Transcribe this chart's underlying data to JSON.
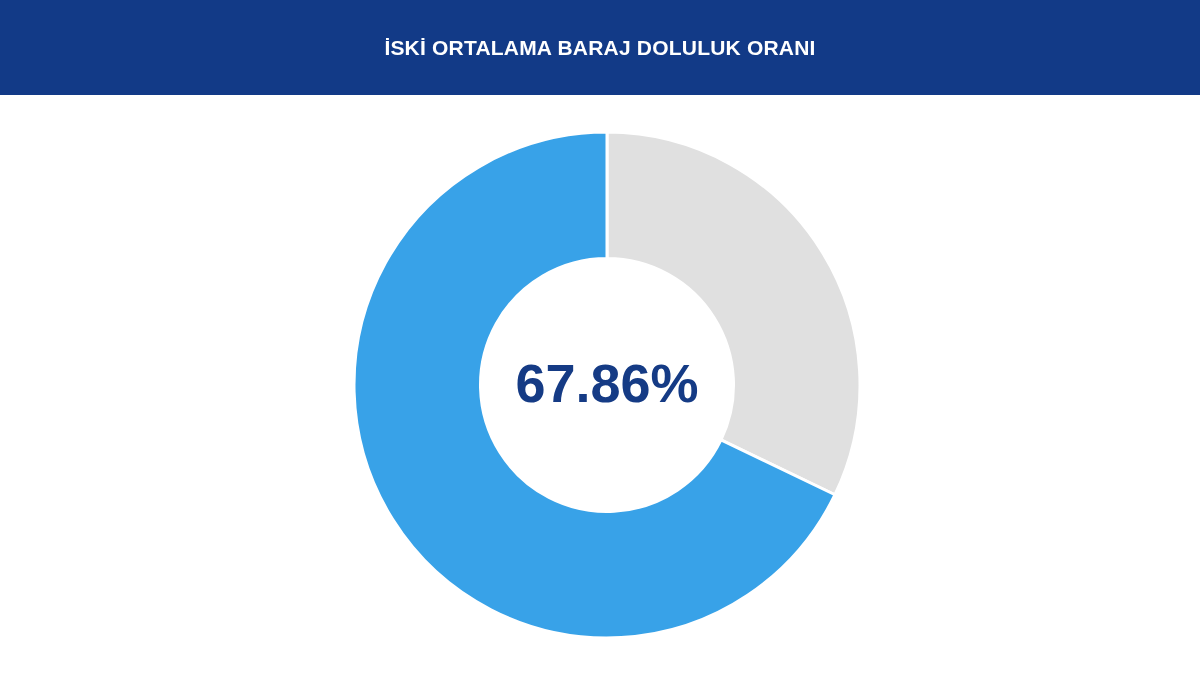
{
  "chart_data": {
    "type": "donut",
    "title": "İSKİ ORTALAMA BARAJ DOLULUK ORANI",
    "categories": [
      null,
      null
    ],
    "values": [
      32.14,
      67.86
    ],
    "colors": [
      "#e0e0e0",
      "#38a2e8"
    ],
    "value_labels": [
      null,
      "67.86%"
    ]
  }
}
